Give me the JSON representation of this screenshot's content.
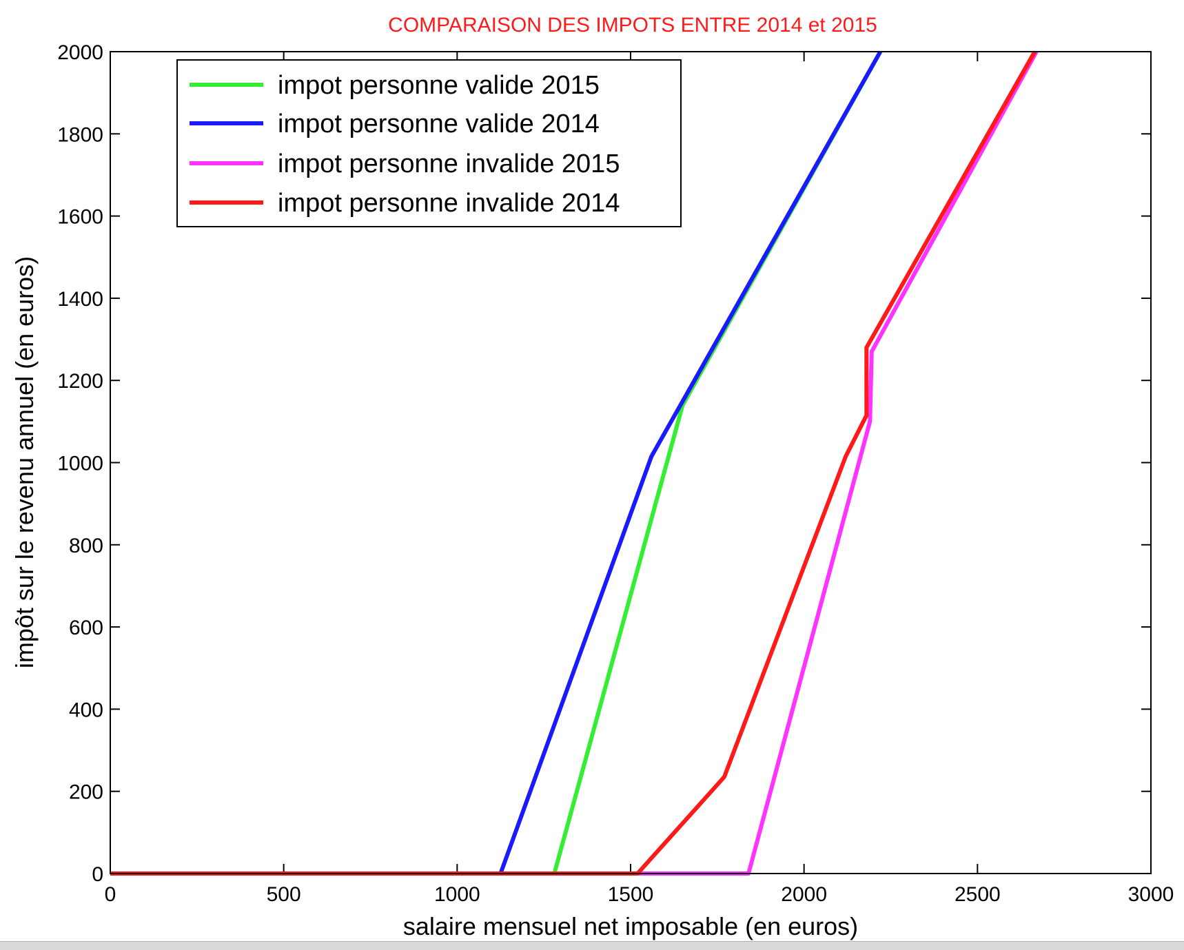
{
  "chart_data": {
    "type": "line",
    "title": "COMPARAISON DES IMPOTS ENTRE 2014 et 2015",
    "title_color": "#ff1a1a",
    "xlabel": "salaire mensuel net imposable (en euros)",
    "ylabel": "impôt sur le revenu annuel (en euros)",
    "xlim": [
      0,
      3000
    ],
    "ylim": [
      0,
      2000
    ],
    "xticks": [
      0,
      500,
      1000,
      1500,
      2000,
      2500,
      3000
    ],
    "yticks": [
      0,
      200,
      400,
      600,
      800,
      1000,
      1200,
      1400,
      1600,
      1800,
      2000
    ],
    "xtick_labels": [
      "0",
      "500",
      "1000",
      "1500",
      "2000",
      "2500",
      "3000"
    ],
    "ytick_labels": [
      "0",
      "200",
      "400",
      "600",
      "800",
      "1000",
      "1200",
      "1400",
      "1600",
      "1800",
      "2000"
    ],
    "grid": false,
    "legend_position": "top-left",
    "series": [
      {
        "name": "impot personne valide 2015",
        "color": "#33ee33",
        "x": [
          0,
          1280,
          1650,
          2220
        ],
        "y": [
          0,
          0,
          1140,
          2000
        ]
      },
      {
        "name": "impot personne valide 2014",
        "color": "#1a1aff",
        "x": [
          0,
          1125,
          1560,
          2220
        ],
        "y": [
          0,
          0,
          1015,
          2000
        ]
      },
      {
        "name": "impot personne invalide 2015",
        "color": "#ff33ff",
        "x": [
          0,
          1840,
          2190,
          2195,
          2670
        ],
        "y": [
          0,
          0,
          1100,
          1270,
          2000
        ]
      },
      {
        "name": "impot personne invalide 2014",
        "color": "#ff1a1a",
        "x": [
          0,
          1520,
          1770,
          2120,
          2180,
          2180,
          2665
        ],
        "y": [
          0,
          0,
          235,
          1015,
          1115,
          1280,
          2000
        ]
      }
    ]
  }
}
